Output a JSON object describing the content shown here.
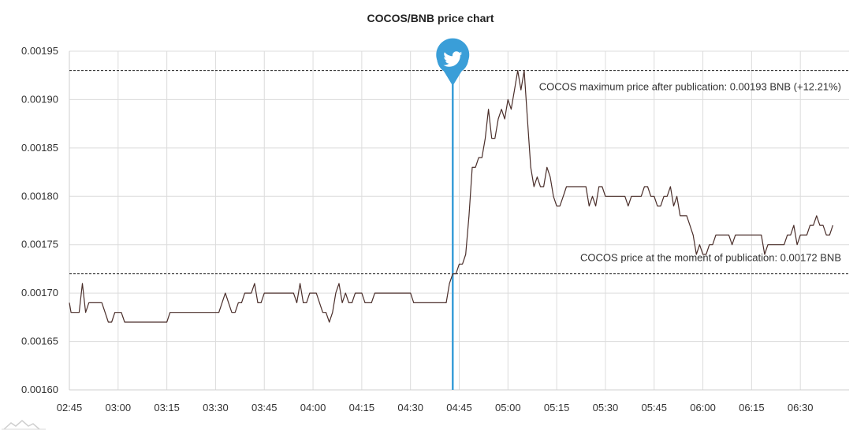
{
  "chart_data": {
    "type": "line",
    "title": "COCOS/BNB price chart",
    "xlabel": "",
    "ylabel": "",
    "x_ticks": [
      "02:45",
      "03:00",
      "03:15",
      "03:30",
      "03:45",
      "04:00",
      "04:15",
      "04:30",
      "04:45",
      "05:00",
      "05:15",
      "05:30",
      "05:45",
      "06:00",
      "06:15",
      "06:30"
    ],
    "y_ticks": [
      "0.00160",
      "0.00165",
      "0.00170",
      "0.00175",
      "0.00180",
      "0.00185",
      "0.00190",
      "0.00195"
    ],
    "ylim": [
      0.0016,
      0.00195
    ],
    "xlim_minutes_from_0245": [
      0,
      240
    ],
    "grid": true,
    "series": [
      {
        "color": "#4a2e2a",
        "points": [
          [
            0,
            0.00169
          ],
          [
            0.5,
            0.00168
          ],
          [
            1,
            0.00168
          ],
          [
            2,
            0.00168
          ],
          [
            3,
            0.00168
          ],
          [
            4,
            0.00171
          ],
          [
            5,
            0.00168
          ],
          [
            6,
            0.00169
          ],
          [
            7,
            0.00169
          ],
          [
            8,
            0.00169
          ],
          [
            9,
            0.00169
          ],
          [
            10,
            0.00169
          ],
          [
            11,
            0.00168
          ],
          [
            12,
            0.00167
          ],
          [
            13,
            0.00167
          ],
          [
            14,
            0.00168
          ],
          [
            15,
            0.00168
          ],
          [
            16,
            0.00168
          ],
          [
            17,
            0.00167
          ],
          [
            18,
            0.00167
          ],
          [
            20,
            0.00167
          ],
          [
            22,
            0.00167
          ],
          [
            24,
            0.00167
          ],
          [
            26,
            0.00167
          ],
          [
            28,
            0.00167
          ],
          [
            30,
            0.00167
          ],
          [
            31,
            0.00168
          ],
          [
            32,
            0.00168
          ],
          [
            34,
            0.00168
          ],
          [
            36,
            0.00168
          ],
          [
            38,
            0.00168
          ],
          [
            40,
            0.00168
          ],
          [
            42,
            0.00168
          ],
          [
            44,
            0.00168
          ],
          [
            46,
            0.00168
          ],
          [
            47,
            0.00169
          ],
          [
            48,
            0.0017
          ],
          [
            49,
            0.00169
          ],
          [
            50,
            0.00168
          ],
          [
            51,
            0.00168
          ],
          [
            52,
            0.00169
          ],
          [
            53,
            0.00169
          ],
          [
            54,
            0.0017
          ],
          [
            55,
            0.0017
          ],
          [
            56,
            0.0017
          ],
          [
            57,
            0.00171
          ],
          [
            58,
            0.00169
          ],
          [
            59,
            0.00169
          ],
          [
            60,
            0.0017
          ],
          [
            61,
            0.0017
          ],
          [
            62,
            0.0017
          ],
          [
            64,
            0.0017
          ],
          [
            66,
            0.0017
          ],
          [
            68,
            0.0017
          ],
          [
            69,
            0.0017
          ],
          [
            70,
            0.00169
          ],
          [
            71,
            0.00171
          ],
          [
            72,
            0.00169
          ],
          [
            73,
            0.00169
          ],
          [
            74,
            0.0017
          ],
          [
            75,
            0.0017
          ],
          [
            76,
            0.0017
          ],
          [
            77,
            0.00169
          ],
          [
            78,
            0.00168
          ],
          [
            79,
            0.00168
          ],
          [
            80,
            0.00167
          ],
          [
            81,
            0.00168
          ],
          [
            82,
            0.0017
          ],
          [
            83,
            0.00171
          ],
          [
            84,
            0.00169
          ],
          [
            85,
            0.0017
          ],
          [
            86,
            0.00169
          ],
          [
            87,
            0.00169
          ],
          [
            88,
            0.0017
          ],
          [
            89,
            0.0017
          ],
          [
            90,
            0.0017
          ],
          [
            91,
            0.00169
          ],
          [
            92,
            0.00169
          ],
          [
            93,
            0.00169
          ],
          [
            94,
            0.0017
          ],
          [
            96,
            0.0017
          ],
          [
            98,
            0.0017
          ],
          [
            100,
            0.0017
          ],
          [
            102,
            0.0017
          ],
          [
            104,
            0.0017
          ],
          [
            105,
            0.0017
          ],
          [
            106,
            0.00169
          ],
          [
            108,
            0.00169
          ],
          [
            110,
            0.00169
          ],
          [
            112,
            0.00169
          ],
          [
            114,
            0.00169
          ],
          [
            116,
            0.00169
          ],
          [
            117,
            0.00171
          ],
          [
            118,
            0.00172
          ],
          [
            119,
            0.00172
          ],
          [
            120,
            0.00173
          ],
          [
            121,
            0.00173
          ],
          [
            122,
            0.00174
          ],
          [
            123,
            0.00178
          ],
          [
            124,
            0.00183
          ],
          [
            125,
            0.00183
          ],
          [
            126,
            0.00184
          ],
          [
            127,
            0.00184
          ],
          [
            128,
            0.00186
          ],
          [
            129,
            0.00189
          ],
          [
            130,
            0.00186
          ],
          [
            131,
            0.00186
          ],
          [
            132,
            0.00188
          ],
          [
            133,
            0.00189
          ],
          [
            134,
            0.00188
          ],
          [
            135,
            0.0019
          ],
          [
            136,
            0.00189
          ],
          [
            137,
            0.00191
          ],
          [
            138,
            0.00193
          ],
          [
            139,
            0.00191
          ],
          [
            140,
            0.00193
          ],
          [
            141,
            0.00188
          ],
          [
            142,
            0.00183
          ],
          [
            143,
            0.00181
          ],
          [
            144,
            0.00182
          ],
          [
            145,
            0.00181
          ],
          [
            146,
            0.00181
          ],
          [
            147,
            0.00183
          ],
          [
            148,
            0.00182
          ],
          [
            149,
            0.0018
          ],
          [
            150,
            0.00179
          ],
          [
            151,
            0.00179
          ],
          [
            152,
            0.0018
          ],
          [
            153,
            0.00181
          ],
          [
            154,
            0.00181
          ],
          [
            156,
            0.00181
          ],
          [
            158,
            0.00181
          ],
          [
            159,
            0.00181
          ],
          [
            160,
            0.00179
          ],
          [
            161,
            0.0018
          ],
          [
            162,
            0.00179
          ],
          [
            163,
            0.00181
          ],
          [
            164,
            0.00181
          ],
          [
            165,
            0.0018
          ],
          [
            166,
            0.0018
          ],
          [
            168,
            0.0018
          ],
          [
            170,
            0.0018
          ],
          [
            171,
            0.0018
          ],
          [
            172,
            0.00179
          ],
          [
            173,
            0.0018
          ],
          [
            174,
            0.0018
          ],
          [
            175,
            0.0018
          ],
          [
            176,
            0.0018
          ],
          [
            177,
            0.00181
          ],
          [
            178,
            0.00181
          ],
          [
            179,
            0.0018
          ],
          [
            180,
            0.0018
          ],
          [
            181,
            0.00179
          ],
          [
            182,
            0.00179
          ],
          [
            183,
            0.0018
          ],
          [
            184,
            0.0018
          ],
          [
            185,
            0.00181
          ],
          [
            186,
            0.00179
          ],
          [
            187,
            0.0018
          ],
          [
            188,
            0.00178
          ],
          [
            189,
            0.00178
          ],
          [
            190,
            0.00178
          ],
          [
            191,
            0.00177
          ],
          [
            192,
            0.00176
          ],
          [
            193,
            0.00174
          ],
          [
            194,
            0.00175
          ],
          [
            195,
            0.00174
          ],
          [
            196,
            0.00174
          ],
          [
            197,
            0.00175
          ],
          [
            198,
            0.00175
          ],
          [
            199,
            0.00176
          ],
          [
            200,
            0.00176
          ],
          [
            202,
            0.00176
          ],
          [
            203,
            0.00176
          ],
          [
            204,
            0.00175
          ],
          [
            205,
            0.00176
          ],
          [
            206,
            0.00176
          ],
          [
            208,
            0.00176
          ],
          [
            210,
            0.00176
          ],
          [
            212,
            0.00176
          ],
          [
            213,
            0.00176
          ],
          [
            214,
            0.00174
          ],
          [
            215,
            0.00175
          ],
          [
            216,
            0.00175
          ],
          [
            218,
            0.00175
          ],
          [
            220,
            0.00175
          ],
          [
            221,
            0.00176
          ],
          [
            222,
            0.00176
          ],
          [
            223,
            0.00177
          ],
          [
            224,
            0.00175
          ],
          [
            225,
            0.00176
          ],
          [
            226,
            0.00176
          ],
          [
            227,
            0.00176
          ],
          [
            228,
            0.00177
          ],
          [
            229,
            0.00177
          ],
          [
            230,
            0.00178
          ],
          [
            231,
            0.00177
          ],
          [
            232,
            0.00177
          ],
          [
            233,
            0.00176
          ],
          [
            234,
            0.00176
          ],
          [
            235,
            0.00177
          ]
        ]
      }
    ],
    "event": {
      "x_minutes_from_0245": 118,
      "color": "#3a9ed8",
      "icon": "twitter-bird-icon"
    },
    "reference_lines": [
      {
        "value": 0.00193,
        "label": "COCOS maximum price after publication: 0.00193 BNB (+12.21%)"
      },
      {
        "value": 0.00172,
        "label": "COCOS price at the moment of publication: 0.00172 BNB"
      }
    ]
  }
}
